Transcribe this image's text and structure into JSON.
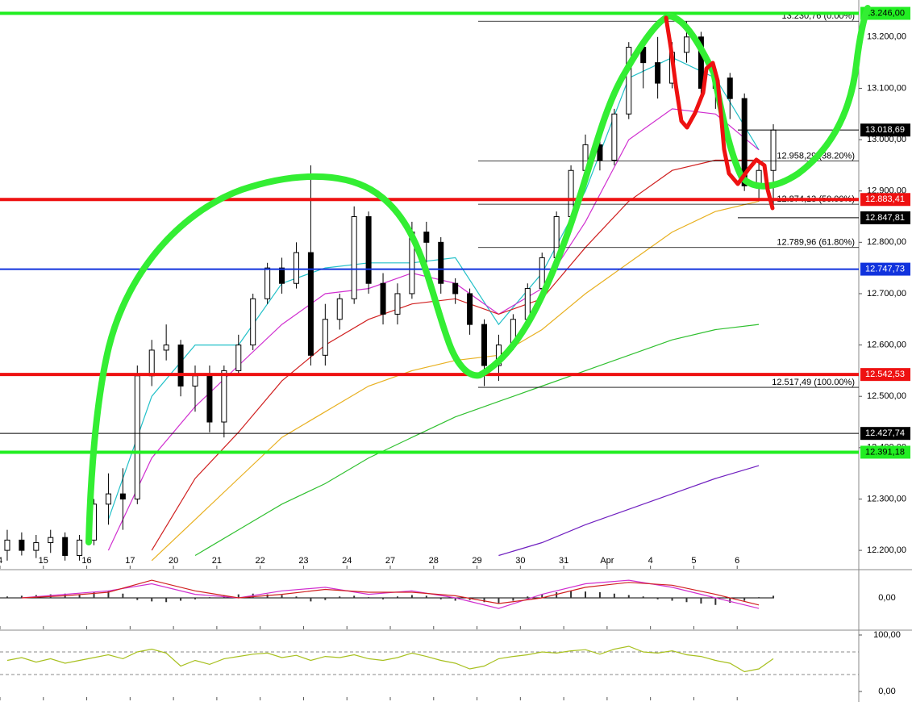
{
  "chart_data": {
    "type": "candlestick",
    "categories": [
      "4",
      "15",
      "16",
      "17",
      "20",
      "21",
      "22",
      "23",
      "24",
      "27",
      "28",
      "29",
      "30",
      "31",
      "Apr",
      "4",
      "5",
      "6"
    ],
    "ylim": [
      12164,
      13272
    ],
    "yticks": [
      {
        "value": 12200,
        "label": "12.200,00"
      },
      {
        "value": 12300,
        "label": "12.300,00"
      },
      {
        "value": 12400,
        "label": "12.400,00"
      },
      {
        "value": 12500,
        "label": "12.500,00"
      },
      {
        "value": 12600,
        "label": "12.600,00"
      },
      {
        "value": 12700,
        "label": "12.700,00"
      },
      {
        "value": 12800,
        "label": "12.800,00"
      },
      {
        "value": 12900,
        "label": "12.900,00"
      },
      {
        "value": 13000,
        "label": "13.000,00"
      },
      {
        "value": 13100,
        "label": "13.100,00"
      },
      {
        "value": 13200,
        "label": "13.200,00"
      }
    ],
    "candles": [
      [
        [
          12200,
          12240,
          12180,
          12220
        ],
        [
          12220,
          12235,
          12190,
          12200
        ],
        [
          12200,
          12230,
          12185,
          12215
        ]
      ],
      [
        [
          12215,
          12240,
          12195,
          12225
        ],
        [
          12225,
          12235,
          12180,
          12190
        ],
        [
          12190,
          12230,
          12180,
          12220
        ]
      ],
      [
        [
          12220,
          12300,
          12210,
          12290
        ],
        [
          12290,
          12350,
          12250,
          12310
        ],
        [
          12310,
          12360,
          12240,
          12300
        ]
      ],
      [
        [
          12300,
          12560,
          12290,
          12540
        ],
        [
          12540,
          12610,
          12520,
          12590
        ],
        [
          12590,
          12640,
          12570,
          12600
        ]
      ],
      [
        [
          12600,
          12610,
          12500,
          12520
        ],
        [
          12520,
          12560,
          12470,
          12540
        ],
        [
          12540,
          12560,
          12430,
          12450
        ]
      ],
      [
        [
          12450,
          12560,
          12420,
          12550
        ],
        [
          12550,
          12620,
          12540,
          12600
        ],
        [
          12600,
          12700,
          12590,
          12690
        ]
      ],
      [
        [
          12690,
          12760,
          12680,
          12750
        ],
        [
          12750,
          12770,
          12700,
          12720
        ],
        [
          12720,
          12800,
          12710,
          12780
        ]
      ],
      [
        [
          12780,
          12950,
          12560,
          12580
        ],
        [
          12580,
          12680,
          12560,
          12650
        ],
        [
          12650,
          12700,
          12630,
          12690
        ]
      ],
      [
        [
          12690,
          12870,
          12680,
          12850
        ],
        [
          12850,
          12860,
          12700,
          12720
        ],
        [
          12720,
          12740,
          12640,
          12660
        ]
      ],
      [
        [
          12660,
          12720,
          12640,
          12700
        ],
        [
          12700,
          12840,
          12690,
          12820
        ],
        [
          12820,
          12840,
          12760,
          12800
        ]
      ],
      [
        [
          12800,
          12810,
          12700,
          12720
        ],
        [
          12720,
          12730,
          12680,
          12700
        ],
        [
          12700,
          12710,
          12620,
          12640
        ]
      ],
      [
        [
          12640,
          12650,
          12520,
          12560
        ],
        [
          12560,
          12620,
          12530,
          12600
        ],
        [
          12600,
          12660,
          12590,
          12650
        ]
      ],
      [
        [
          12650,
          12720,
          12640,
          12710
        ],
        [
          12710,
          12780,
          12700,
          12770
        ],
        [
          12770,
          12860,
          12760,
          12850
        ]
      ],
      [
        [
          12850,
          12950,
          12840,
          12940
        ],
        [
          12940,
          13010,
          12930,
          12990
        ],
        [
          12990,
          13000,
          12940,
          12960
        ]
      ],
      [
        [
          12960,
          13060,
          12950,
          13050
        ],
        [
          13050,
          13190,
          13040,
          13180
        ],
        [
          13180,
          13190,
          13100,
          13150
        ]
      ],
      [
        [
          13150,
          13200,
          13080,
          13110
        ],
        [
          13110,
          13190,
          13100,
          13170
        ],
        [
          13170,
          13230,
          13150,
          13200
        ]
      ],
      [
        [
          13200,
          13210,
          13080,
          13100
        ],
        [
          13100,
          13130,
          13060,
          13120
        ],
        [
          13120,
          13130,
          13040,
          13080
        ]
      ],
      [
        [
          13080,
          13090,
          12900,
          12910
        ],
        [
          12910,
          12960,
          12880,
          12940
        ],
        [
          12940,
          13030,
          12870,
          13018.69
        ]
      ]
    ],
    "moving_averages": [
      {
        "color": "#22c0c8",
        "values": [
          null,
          null,
          12260,
          12500,
          12600,
          12600,
          12720,
          12750,
          12760,
          12760,
          12770,
          12640,
          12740,
          12900,
          13120,
          13160,
          13120,
          12980
        ]
      },
      {
        "color": "#d030d0",
        "values": [
          null,
          null,
          12200,
          12380,
          12480,
          12560,
          12640,
          12700,
          12710,
          12740,
          12720,
          12660,
          12710,
          12840,
          13000,
          13060,
          13050,
          12980
        ]
      },
      {
        "color": "#d02020",
        "values": [
          null,
          null,
          null,
          12200,
          12340,
          12430,
          12530,
          12600,
          12650,
          12680,
          12690,
          12660,
          12690,
          12790,
          12880,
          12940,
          12960,
          12960
        ]
      },
      {
        "color": "#e8b020",
        "values": [
          null,
          null,
          null,
          12180,
          12260,
          12340,
          12420,
          12470,
          12520,
          12550,
          12570,
          12580,
          12630,
          12700,
          12760,
          12820,
          12860,
          12880
        ]
      },
      {
        "color": "#30c030",
        "values": [
          null,
          null,
          null,
          null,
          12190,
          12240,
          12290,
          12330,
          12380,
          12420,
          12460,
          12490,
          12520,
          12550,
          12580,
          12610,
          12630,
          12640
        ]
      },
      {
        "color": "#7020c0",
        "values": [
          null,
          null,
          null,
          null,
          null,
          null,
          null,
          null,
          null,
          null,
          null,
          12190,
          12215,
          12250,
          12280,
          12310,
          12340,
          12365
        ]
      }
    ],
    "levels": [
      {
        "value": 13246,
        "label": "13.246,00",
        "color": "#22ee22",
        "extent": "full"
      },
      {
        "value": 13018.69,
        "label": "13.018,69",
        "color": "#000000",
        "extent": "recent"
      },
      {
        "value": 12883.41,
        "label": "12.883,41",
        "color": "#ee1111",
        "extent": "full"
      },
      {
        "value": 12847.81,
        "label": "12.847,81",
        "color": "#000000",
        "extent": "recent"
      },
      {
        "value": 12747.73,
        "label": "12.747,73",
        "color": "#1133dd",
        "extent": "full"
      },
      {
        "value": 12542.53,
        "label": "12.542,53",
        "color": "#ee1111",
        "extent": "full"
      },
      {
        "value": 12427.74,
        "label": "12.427,74",
        "color": "#000000",
        "extent": "full"
      },
      {
        "value": 12391.18,
        "label": "12.391,18",
        "color": "#22ee22",
        "extent": "full"
      }
    ],
    "fibonacci": [
      {
        "value": 13230.76,
        "label": "13.230,76 (0.00%)"
      },
      {
        "value": 12958.29,
        "label": "12.958,29 (38.20%)"
      },
      {
        "value": 12874.13,
        "label": "12.874,13 (50.00%)"
      },
      {
        "value": 12789.96,
        "label": "12.789,96 (61.80%)"
      },
      {
        "value": 12517.49,
        "label": "12.517,49 (100.00%)"
      }
    ],
    "macd": {
      "ylim": [
        -40,
        40
      ],
      "yticks": [
        {
          "value": 0,
          "label": "0,00"
        }
      ],
      "macd": [
        0,
        5,
        10,
        20,
        5,
        0,
        10,
        15,
        5,
        10,
        0,
        -15,
        5,
        20,
        25,
        15,
        0,
        -15
      ],
      "signal": [
        0,
        3,
        8,
        25,
        10,
        0,
        5,
        12,
        8,
        8,
        3,
        -8,
        0,
        15,
        22,
        18,
        5,
        -10
      ],
      "histogram": [
        2,
        3,
        4,
        5,
        6,
        4,
        8,
        10,
        6,
        -3,
        -5,
        -6,
        -4,
        -2,
        1,
        3,
        5,
        6,
        5,
        4,
        2,
        -5,
        -3,
        2,
        3,
        1,
        -2,
        2,
        4,
        3,
        -2,
        -4,
        -3,
        -6,
        -8,
        -4,
        2,
        5,
        8,
        10,
        9,
        8,
        6,
        4,
        2,
        -2,
        -4,
        -6,
        -8,
        -10,
        -7,
        -4,
        1,
        3
      ]
    },
    "rsi": {
      "ylim": [
        0,
        100
      ],
      "yticks": [
        {
          "value": 0,
          "label": "0,00"
        },
        {
          "value": 100,
          "label": "100,00"
        }
      ],
      "bands": [
        30,
        70
      ],
      "values": [
        55,
        60,
        52,
        58,
        50,
        55,
        60,
        65,
        58,
        70,
        75,
        68,
        45,
        55,
        48,
        58,
        62,
        66,
        68,
        60,
        64,
        55,
        62,
        60,
        65,
        58,
        55,
        60,
        68,
        62,
        55,
        50,
        40,
        45,
        58,
        62,
        65,
        70,
        68,
        72,
        74,
        66,
        75,
        80,
        70,
        68,
        72,
        65,
        62,
        55,
        50,
        35,
        40,
        58
      ]
    }
  }
}
